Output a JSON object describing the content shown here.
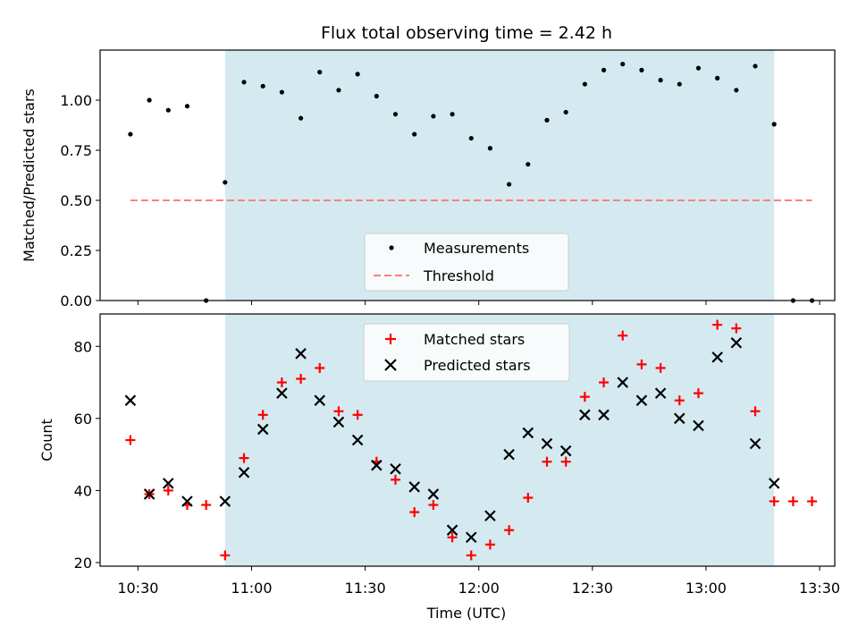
{
  "chart_data": [
    {
      "type": "scatter",
      "title": "Flux total observing time = 2.42 h",
      "xlabel": "",
      "ylabel": "Matched/Predicted stars",
      "ylim": [
        0.0,
        1.25
      ],
      "yticks": [
        0.0,
        0.25,
        0.5,
        0.75,
        1.0
      ],
      "ytick_labels": [
        "0.00",
        "0.25",
        "0.50",
        "0.75",
        "1.00"
      ],
      "shaded_region": {
        "x_start": "10:53",
        "x_end": "13:18",
        "color": "#d4eaf0"
      },
      "legend": {
        "placement": "lower-center"
      },
      "series": [
        {
          "name": "Measurements",
          "marker": "dot",
          "color": "#000000",
          "x": [
            "10:28",
            "10:33",
            "10:38",
            "10:43",
            "10:48",
            "10:53",
            "10:58",
            "11:03",
            "11:08",
            "11:13",
            "11:18",
            "11:23",
            "11:28",
            "11:33",
            "11:38",
            "11:43",
            "11:48",
            "11:53",
            "11:58",
            "12:03",
            "12:08",
            "12:13",
            "12:18",
            "12:23",
            "12:28",
            "12:33",
            "12:38",
            "12:43",
            "12:48",
            "12:53",
            "12:58",
            "13:03",
            "13:08",
            "13:13",
            "13:18",
            "13:23",
            "13:28"
          ],
          "y": [
            0.83,
            1.0,
            0.95,
            0.97,
            0.0,
            0.59,
            1.09,
            1.07,
            1.04,
            0.91,
            1.14,
            1.05,
            1.13,
            1.02,
            0.93,
            0.83,
            0.92,
            0.93,
            0.81,
            0.76,
            0.58,
            0.68,
            0.9,
            0.94,
            1.08,
            1.15,
            1.18,
            1.15,
            1.1,
            1.08,
            1.16,
            1.11,
            1.05,
            1.17,
            0.88,
            0.0,
            0.0
          ]
        },
        {
          "name": "Threshold",
          "marker": "dashed-line",
          "color": "#ff7f7f",
          "x": [
            "10:28",
            "13:28"
          ],
          "y": [
            0.5,
            0.5
          ]
        }
      ]
    },
    {
      "type": "scatter",
      "xlabel": "Time (UTC)",
      "ylabel": "Count",
      "ylim": [
        19,
        89
      ],
      "yticks": [
        20,
        40,
        60,
        80
      ],
      "ytick_labels": [
        "20",
        "40",
        "60",
        "80"
      ],
      "xticks": [
        "10:30",
        "11:00",
        "11:30",
        "12:00",
        "12:30",
        "13:00",
        "13:30"
      ],
      "shaded_region": {
        "x_start": "10:53",
        "x_end": "13:18",
        "color": "#d4eaf0"
      },
      "legend": {
        "placement": "upper-center"
      },
      "series": [
        {
          "name": "Matched stars",
          "marker": "plus",
          "color": "#ff0000",
          "x": [
            "10:28",
            "10:33",
            "10:38",
            "10:43",
            "10:48",
            "10:53",
            "10:58",
            "11:03",
            "11:08",
            "11:13",
            "11:18",
            "11:23",
            "11:28",
            "11:33",
            "11:38",
            "11:43",
            "11:48",
            "11:53",
            "11:58",
            "12:03",
            "12:08",
            "12:13",
            "12:18",
            "12:23",
            "12:28",
            "12:33",
            "12:38",
            "12:43",
            "12:48",
            "12:53",
            "12:58",
            "13:03",
            "13:08",
            "13:13",
            "13:18",
            "13:23",
            "13:28"
          ],
          "y": [
            54,
            39,
            40,
            36,
            36,
            22,
            49,
            61,
            70,
            71,
            74,
            62,
            61,
            48,
            43,
            34,
            36,
            27,
            22,
            25,
            29,
            38,
            48,
            48,
            66,
            70,
            83,
            75,
            74,
            65,
            67,
            86,
            85,
            62,
            37,
            37,
            37
          ]
        },
        {
          "name": "Predicted stars",
          "marker": "x",
          "color": "#000000",
          "x": [
            "10:28",
            "10:33",
            "10:38",
            "10:43",
            "10:53",
            "10:58",
            "11:03",
            "11:08",
            "11:13",
            "11:18",
            "11:23",
            "11:28",
            "11:33",
            "11:38",
            "11:43",
            "11:48",
            "11:53",
            "11:58",
            "12:03",
            "12:08",
            "12:13",
            "12:18",
            "12:23",
            "12:28",
            "12:33",
            "12:38",
            "12:43",
            "12:48",
            "12:53",
            "12:58",
            "13:03",
            "13:08",
            "13:13",
            "13:18"
          ],
          "y": [
            65,
            39,
            42,
            37,
            37,
            45,
            57,
            67,
            78,
            65,
            59,
            54,
            47,
            46,
            41,
            39,
            29,
            27,
            33,
            50,
            56,
            53,
            51,
            61,
            61,
            70,
            65,
            67,
            60,
            58,
            77,
            81,
            53,
            42
          ]
        }
      ]
    }
  ]
}
